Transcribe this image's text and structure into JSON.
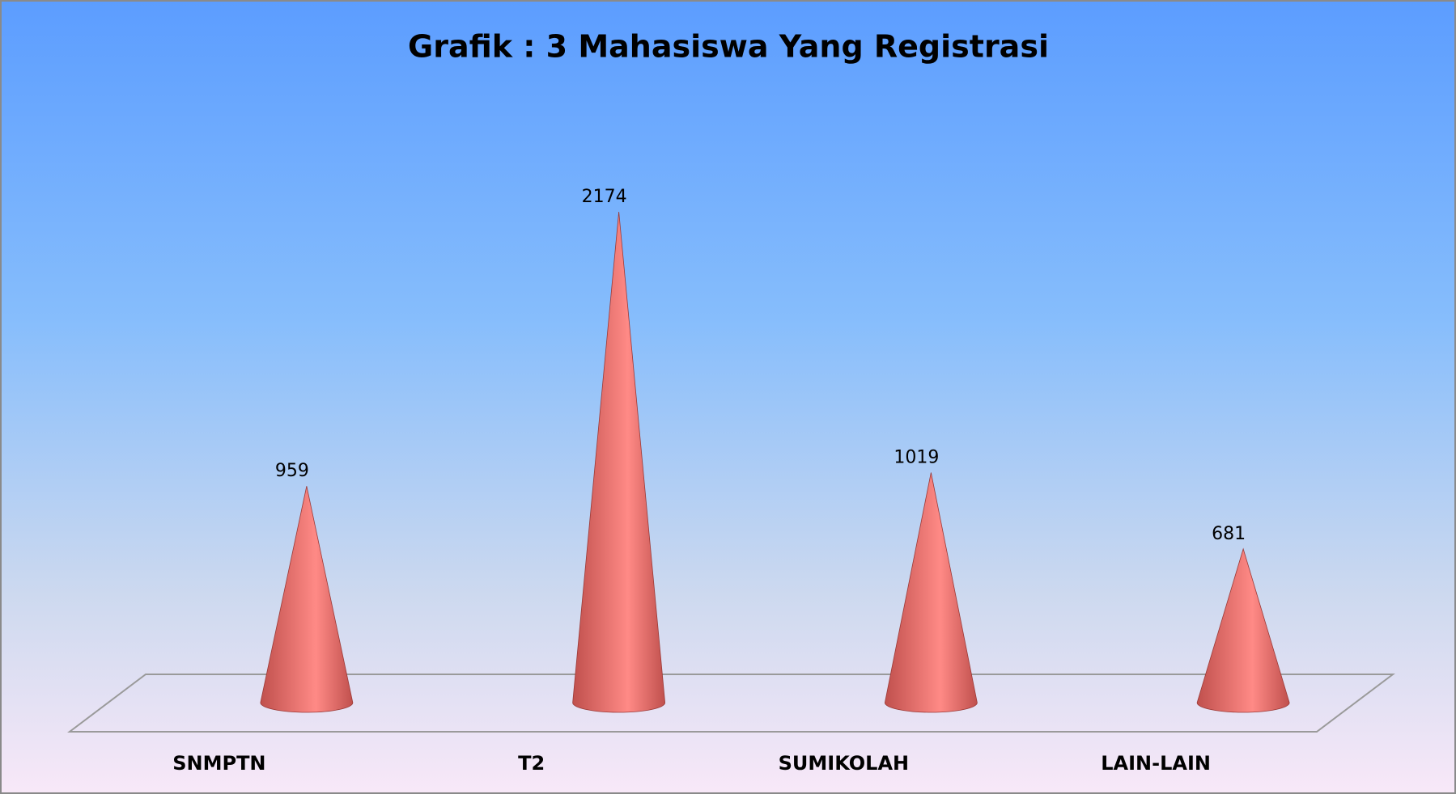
{
  "chart_data": {
    "type": "cone",
    "title": "Grafik : 3 Mahasiswa Yang Registrasi",
    "categories": [
      "SNMPTN",
      "T2",
      "SUMIKOLAH",
      "LAIN-LAIN"
    ],
    "values": [
      959,
      2174,
      1019,
      681
    ],
    "color": "#c0504d"
  }
}
